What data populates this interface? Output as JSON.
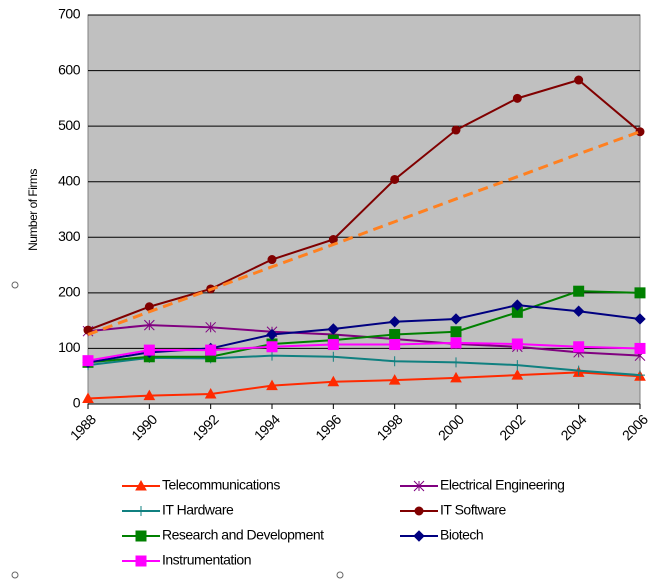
{
  "chart_data": {
    "type": "line",
    "y_label": "Number of Firms",
    "x": [
      1988,
      1990,
      1992,
      1994,
      1996,
      1998,
      2000,
      2002,
      2004,
      2006
    ],
    "xlim": [
      1988,
      2006
    ],
    "ylim": [
      0,
      700
    ],
    "yticks": [
      0,
      100,
      200,
      300,
      400,
      500,
      600,
      700
    ],
    "grid": true,
    "legend": "bottom",
    "series": [
      {
        "name": "Telecommunications",
        "color": "#ff2a00",
        "marker": "triangle",
        "values": [
          10,
          15,
          18,
          33,
          40,
          43,
          47,
          52,
          57,
          50
        ]
      },
      {
        "name": "Electrical Engineering",
        "color": "#800080",
        "marker": "star",
        "values": [
          131,
          142,
          138,
          130,
          125,
          117,
          108,
          103,
          93,
          87
        ]
      },
      {
        "name": "IT Hardware",
        "color": "#108080",
        "marker": "plus",
        "values": [
          70,
          83,
          82,
          87,
          85,
          77,
          75,
          70,
          60,
          52
        ]
      },
      {
        "name": "IT Software",
        "color": "#800000",
        "marker": "circle",
        "values": [
          133,
          175,
          207,
          260,
          296,
          404,
          493,
          550,
          583,
          490
        ]
      },
      {
        "name": "Research and Development",
        "color": "#008000",
        "marker": "square",
        "values": [
          75,
          85,
          85,
          108,
          115,
          125,
          130,
          165,
          203,
          200
        ]
      },
      {
        "name": "Biotech",
        "color": "#000080",
        "marker": "diamond",
        "values": [
          75,
          93,
          100,
          125,
          135,
          148,
          153,
          178,
          167,
          153
        ]
      },
      {
        "name": "Instrumentation",
        "color": "#ff00ff",
        "marker": "square",
        "values": [
          78,
          97,
          97,
          103,
          107,
          107,
          110,
          108,
          103,
          100
        ]
      },
      {
        "color": "#ff8020",
        "dash": true,
        "values": [
          125,
          166,
          206,
          247,
          287,
          328,
          369,
          409,
          450,
          490
        ]
      }
    ]
  }
}
